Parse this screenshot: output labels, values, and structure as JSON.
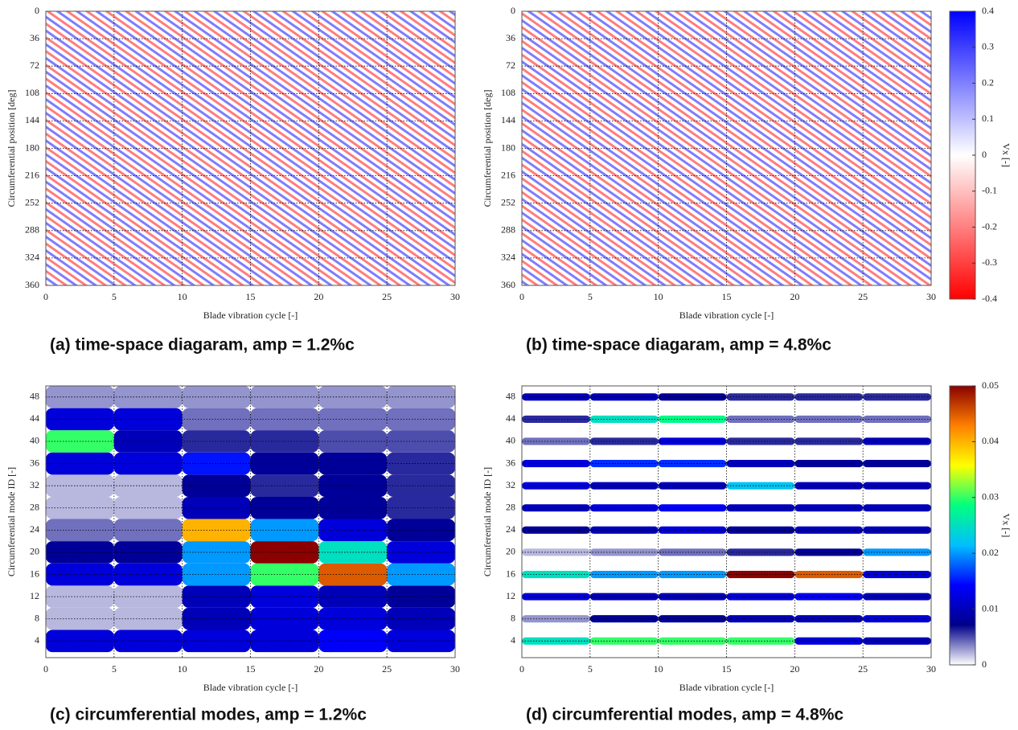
{
  "chart_data": [
    {
      "type": "heatmap",
      "caption": "(a) time-space diagaram, amp = 1.2%c",
      "xlabel": "Blade vibration cycle [-]",
      "ylabel": "Circumferential position [deg]",
      "xlim": [
        0,
        30
      ],
      "xticks": [
        0,
        5,
        10,
        15,
        20,
        25,
        30
      ],
      "ylim": [
        360,
        0
      ],
      "yticks": [
        0,
        36,
        72,
        108,
        144,
        180,
        216,
        252,
        288,
        324,
        360
      ],
      "grid": true
    },
    {
      "type": "heatmap",
      "caption": "(b) time-space diagaram, amp = 4.8%c",
      "xlabel": "Blade vibration cycle [-]",
      "ylabel": "Circumferential position [deg]",
      "xlim": [
        0,
        30
      ],
      "xticks": [
        0,
        5,
        10,
        15,
        20,
        25,
        30
      ],
      "ylim": [
        360,
        0
      ],
      "yticks": [
        0,
        36,
        72,
        108,
        144,
        180,
        216,
        252,
        288,
        324,
        360
      ],
      "grid": true,
      "colorbar": {
        "label": "Vx [-]",
        "lim": [
          -0.4,
          0.4
        ],
        "ticks": [
          0.4,
          0.3,
          0.2,
          0.1,
          0,
          -0.1,
          -0.2,
          -0.3,
          -0.4
        ],
        "colors": [
          "#ff0000",
          "#ffffff",
          "#0000ff"
        ]
      }
    },
    {
      "type": "heatmap",
      "caption": "(c) circumferential modes, amp = 1.2%c",
      "xlabel": "Blade vibration cycle [-]",
      "ylabel": "Circumferential mode ID [-]",
      "xlim": [
        0,
        30
      ],
      "xticks": [
        0,
        5,
        10,
        15,
        20,
        25,
        30
      ],
      "ylim": [
        1,
        50
      ],
      "yticks": [
        4,
        8,
        12,
        16,
        20,
        24,
        28,
        32,
        36,
        40,
        44,
        48
      ],
      "grid": true,
      "bins": [
        0,
        5,
        10,
        15,
        20,
        25,
        30
      ],
      "rows": [
        4,
        8,
        12,
        16,
        20,
        24,
        28,
        32,
        36,
        40,
        44,
        48
      ],
      "values": [
        [
          0.012,
          0.012,
          0.012,
          0.012,
          0.014,
          0.012
        ],
        [
          0.002,
          0.002,
          0.01,
          0.012,
          0.012,
          0.01
        ],
        [
          0.002,
          0.002,
          0.01,
          0.012,
          0.01,
          0.008
        ],
        [
          0.012,
          0.012,
          0.02,
          0.03,
          0.045,
          0.02
        ],
        [
          0.008,
          0.008,
          0.02,
          0.05,
          0.025,
          0.012
        ],
        [
          0.004,
          0.004,
          0.04,
          0.02,
          0.012,
          0.008
        ],
        [
          0.002,
          0.002,
          0.01,
          0.008,
          0.008,
          0.006
        ],
        [
          0.002,
          0.002,
          0.008,
          0.006,
          0.008,
          0.006
        ],
        [
          0.012,
          0.012,
          0.015,
          0.008,
          0.008,
          0.006
        ],
        [
          0.03,
          0.01,
          0.006,
          0.006,
          0.005,
          0.005
        ],
        [
          0.012,
          0.012,
          0.004,
          0.004,
          0.004,
          0.004
        ],
        [
          0.003,
          0.003,
          0.003,
          0.003,
          0.003,
          0.003
        ]
      ]
    },
    {
      "type": "heatmap",
      "caption": "(d) circumferential modes, amp = 4.8%c",
      "xlabel": "Blade vibration cycle [-]",
      "ylabel": "Circumferential mode ID [-]",
      "xlim": [
        0,
        30
      ],
      "xticks": [
        0,
        5,
        10,
        15,
        20,
        25,
        30
      ],
      "ylim": [
        1,
        50
      ],
      "yticks": [
        4,
        8,
        12,
        16,
        20,
        24,
        28,
        32,
        36,
        40,
        44,
        48
      ],
      "grid": true,
      "bins": [
        0,
        5,
        10,
        15,
        20,
        25,
        30
      ],
      "rows": [
        4,
        8,
        12,
        16,
        20,
        24,
        28,
        32,
        36,
        40,
        44,
        48
      ],
      "values": [
        [
          0.025,
          0.03,
          0.03,
          0.03,
          0.012,
          0.01
        ],
        [
          0.003,
          0.008,
          0.008,
          0.01,
          0.01,
          0.012
        ],
        [
          0.012,
          0.01,
          0.01,
          0.012,
          0.014,
          0.01
        ],
        [
          0.025,
          0.02,
          0.02,
          0.05,
          0.045,
          0.012
        ],
        [
          0.002,
          0.003,
          0.004,
          0.006,
          0.008,
          0.02
        ],
        [
          0.008,
          0.01,
          0.012,
          0.008,
          0.01,
          0.01
        ],
        [
          0.01,
          0.012,
          0.014,
          0.01,
          0.01,
          0.01
        ],
        [
          0.012,
          0.01,
          0.01,
          0.022,
          0.01,
          0.01
        ],
        [
          0.012,
          0.016,
          0.016,
          0.01,
          0.008,
          0.008
        ],
        [
          0.004,
          0.006,
          0.012,
          0.006,
          0.006,
          0.01
        ],
        [
          0.006,
          0.025,
          0.028,
          0.004,
          0.004,
          0.004
        ],
        [
          0.01,
          0.01,
          0.008,
          0.006,
          0.006,
          0.006
        ]
      ],
      "colorbar": {
        "label": "Vx [-]",
        "lim": [
          0,
          0.05
        ],
        "ticks": [
          0.05,
          0.04,
          0.03,
          0.02,
          0.01,
          0
        ],
        "colors": [
          "#ffffff",
          "#00008b",
          "#0000ff",
          "#00bfff",
          "#00ff80",
          "#ffff00",
          "#ff8000",
          "#8b0000"
        ]
      }
    }
  ]
}
